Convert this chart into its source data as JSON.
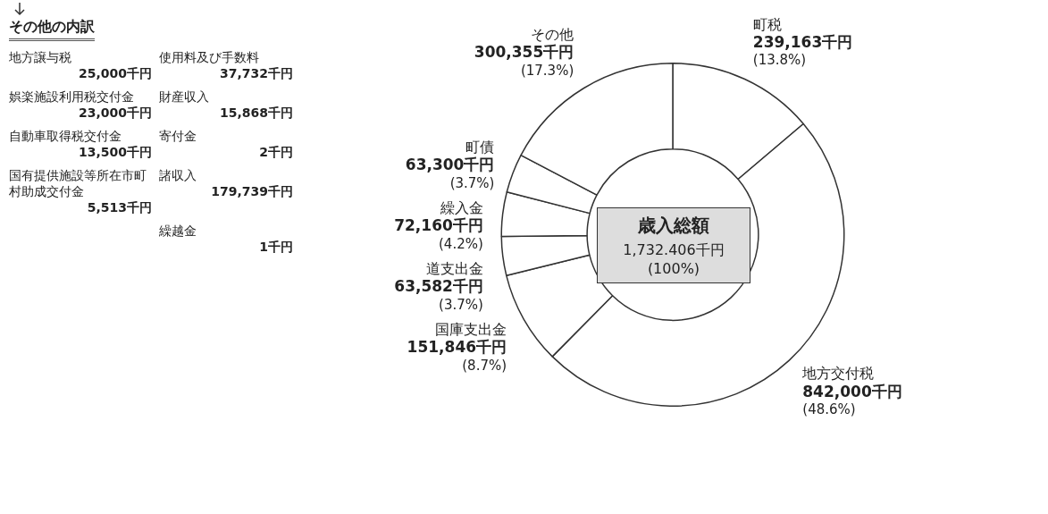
{
  "chart_data": {
    "type": "donut",
    "title": "歳入総額",
    "subtitle": "1,732.406千円 (100%)",
    "categories": [
      "町税",
      "地方交付税",
      "国庫支出金",
      "道支出金",
      "繰入金",
      "町債",
      "その他"
    ],
    "values": [
      239163,
      842000,
      151846,
      63582,
      72160,
      63300,
      300355
    ],
    "colors": [
      "#ffffff",
      "#ffffff",
      "#ffffff",
      "#ffffff",
      "#ffffff",
      "#ffffff",
      "#ffffff"
    ],
    "value_labels": [
      "239,163千円\n(13.8%)",
      "842,000千円\n(48.6%)",
      "151,846千円\n(8.7%)",
      "63,582千円\n(3.7%)",
      "72,160千円\n(4.2%)",
      "63,300千円\n(3.7%)",
      "300,355千円\n(17.3%)"
    ],
    "legend": false,
    "annotations": [
      "その他の内訳",
      "地方譲与税\n25,000千円",
      "娯楽施設利用税交付金\n23,000千円",
      "自動車取得税交付金\n13,500千円",
      "国有提供施設等所在市町村助成交付金\n5,513千円",
      "使用料及び手数料\n37,732千円",
      "財産収入\n15,868千円",
      "寄付金\n2千円",
      "諸収入\n179,739千円",
      "繰越金\n1千円"
    ]
  }
}
